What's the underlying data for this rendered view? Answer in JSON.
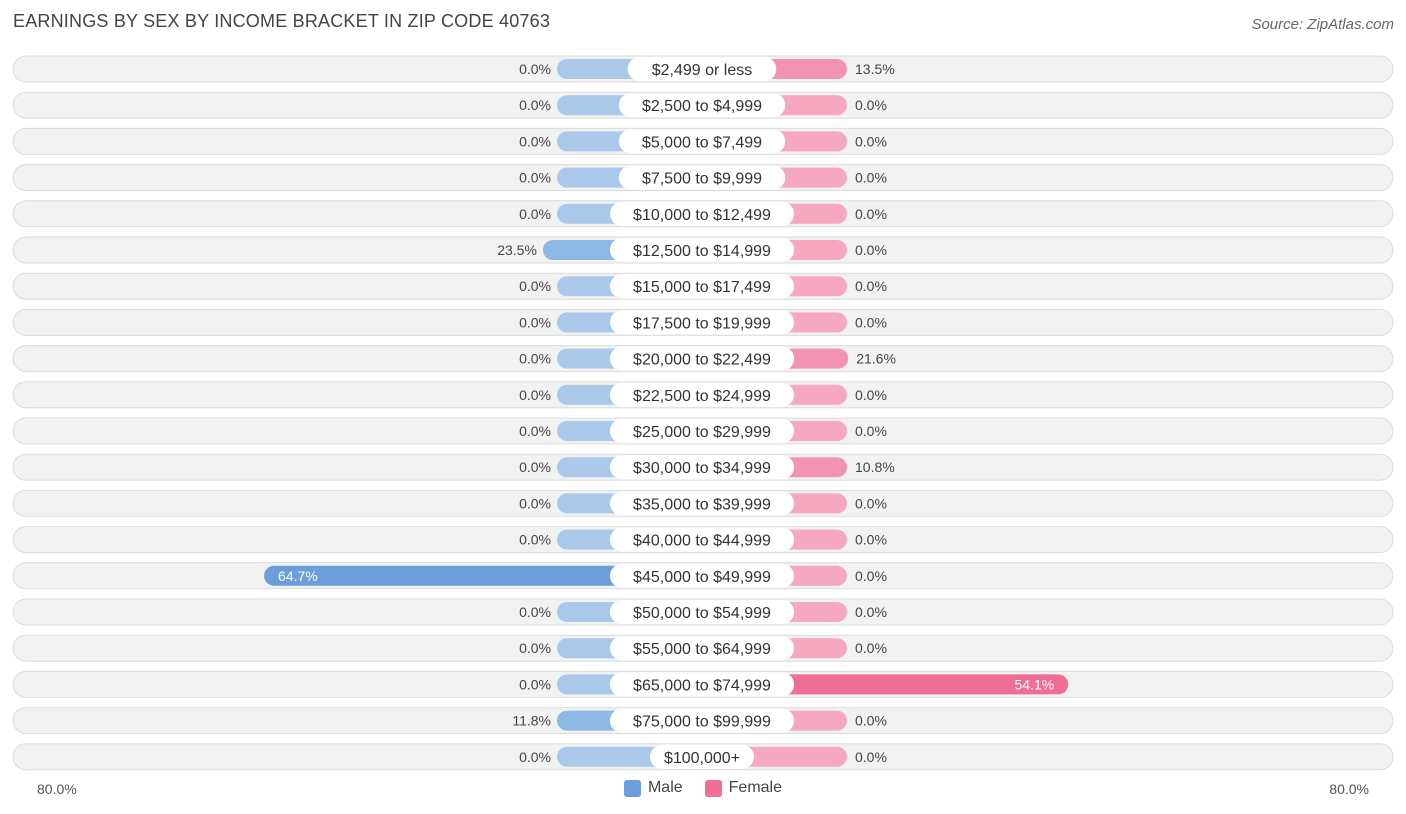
{
  "title": "EARNINGS BY SEX BY INCOME BRACKET IN ZIP CODE 40763",
  "source": "Source: ZipAtlas.com",
  "colors": {
    "male_light": "#aac8ea",
    "male_strong": "#6a9fdc",
    "female_light": "#f5a8c0",
    "female_strong": "#f06d96"
  },
  "legend": {
    "male": "Male",
    "female": "Female"
  },
  "axis": {
    "left_label": "80.0%",
    "right_label": "80.0%"
  },
  "chart_data": {
    "type": "bar",
    "orientation": "horizontal-diverging",
    "title": "EARNINGS BY SEX BY INCOME BRACKET IN ZIP CODE 40763",
    "xlim": [
      -80,
      80
    ],
    "categories": [
      "$2,499 or less",
      "$2,500 to $4,999",
      "$5,000 to $7,499",
      "$7,500 to $9,999",
      "$10,000 to $12,499",
      "$12,500 to $14,999",
      "$15,000 to $17,499",
      "$17,500 to $19,999",
      "$20,000 to $22,499",
      "$22,500 to $24,999",
      "$25,000 to $29,999",
      "$30,000 to $34,999",
      "$35,000 to $39,999",
      "$40,000 to $44,999",
      "$45,000 to $49,999",
      "$50,000 to $54,999",
      "$55,000 to $64,999",
      "$65,000 to $74,999",
      "$75,000 to $99,999",
      "$100,000+"
    ],
    "series": [
      {
        "name": "Male",
        "values": [
          0.0,
          0.0,
          0.0,
          0.0,
          0.0,
          23.5,
          0.0,
          0.0,
          0.0,
          0.0,
          0.0,
          0.0,
          0.0,
          0.0,
          64.7,
          0.0,
          0.0,
          0.0,
          11.8,
          0.0
        ],
        "labels": [
          "0.0%",
          "0.0%",
          "0.0%",
          "0.0%",
          "0.0%",
          "23.5%",
          "0.0%",
          "0.0%",
          "0.0%",
          "0.0%",
          "0.0%",
          "0.0%",
          "0.0%",
          "0.0%",
          "64.7%",
          "0.0%",
          "0.0%",
          "0.0%",
          "11.8%",
          "0.0%"
        ]
      },
      {
        "name": "Female",
        "values": [
          13.5,
          0.0,
          0.0,
          0.0,
          0.0,
          0.0,
          0.0,
          0.0,
          21.6,
          0.0,
          0.0,
          10.8,
          0.0,
          0.0,
          0.0,
          0.0,
          0.0,
          54.1,
          0.0,
          0.0
        ],
        "labels": [
          "13.5%",
          "0.0%",
          "0.0%",
          "0.0%",
          "0.0%",
          "0.0%",
          "0.0%",
          "0.0%",
          "21.6%",
          "0.0%",
          "0.0%",
          "10.8%",
          "0.0%",
          "0.0%",
          "0.0%",
          "0.0%",
          "0.0%",
          "54.1%",
          "0.0%",
          "0.0%"
        ]
      }
    ]
  }
}
